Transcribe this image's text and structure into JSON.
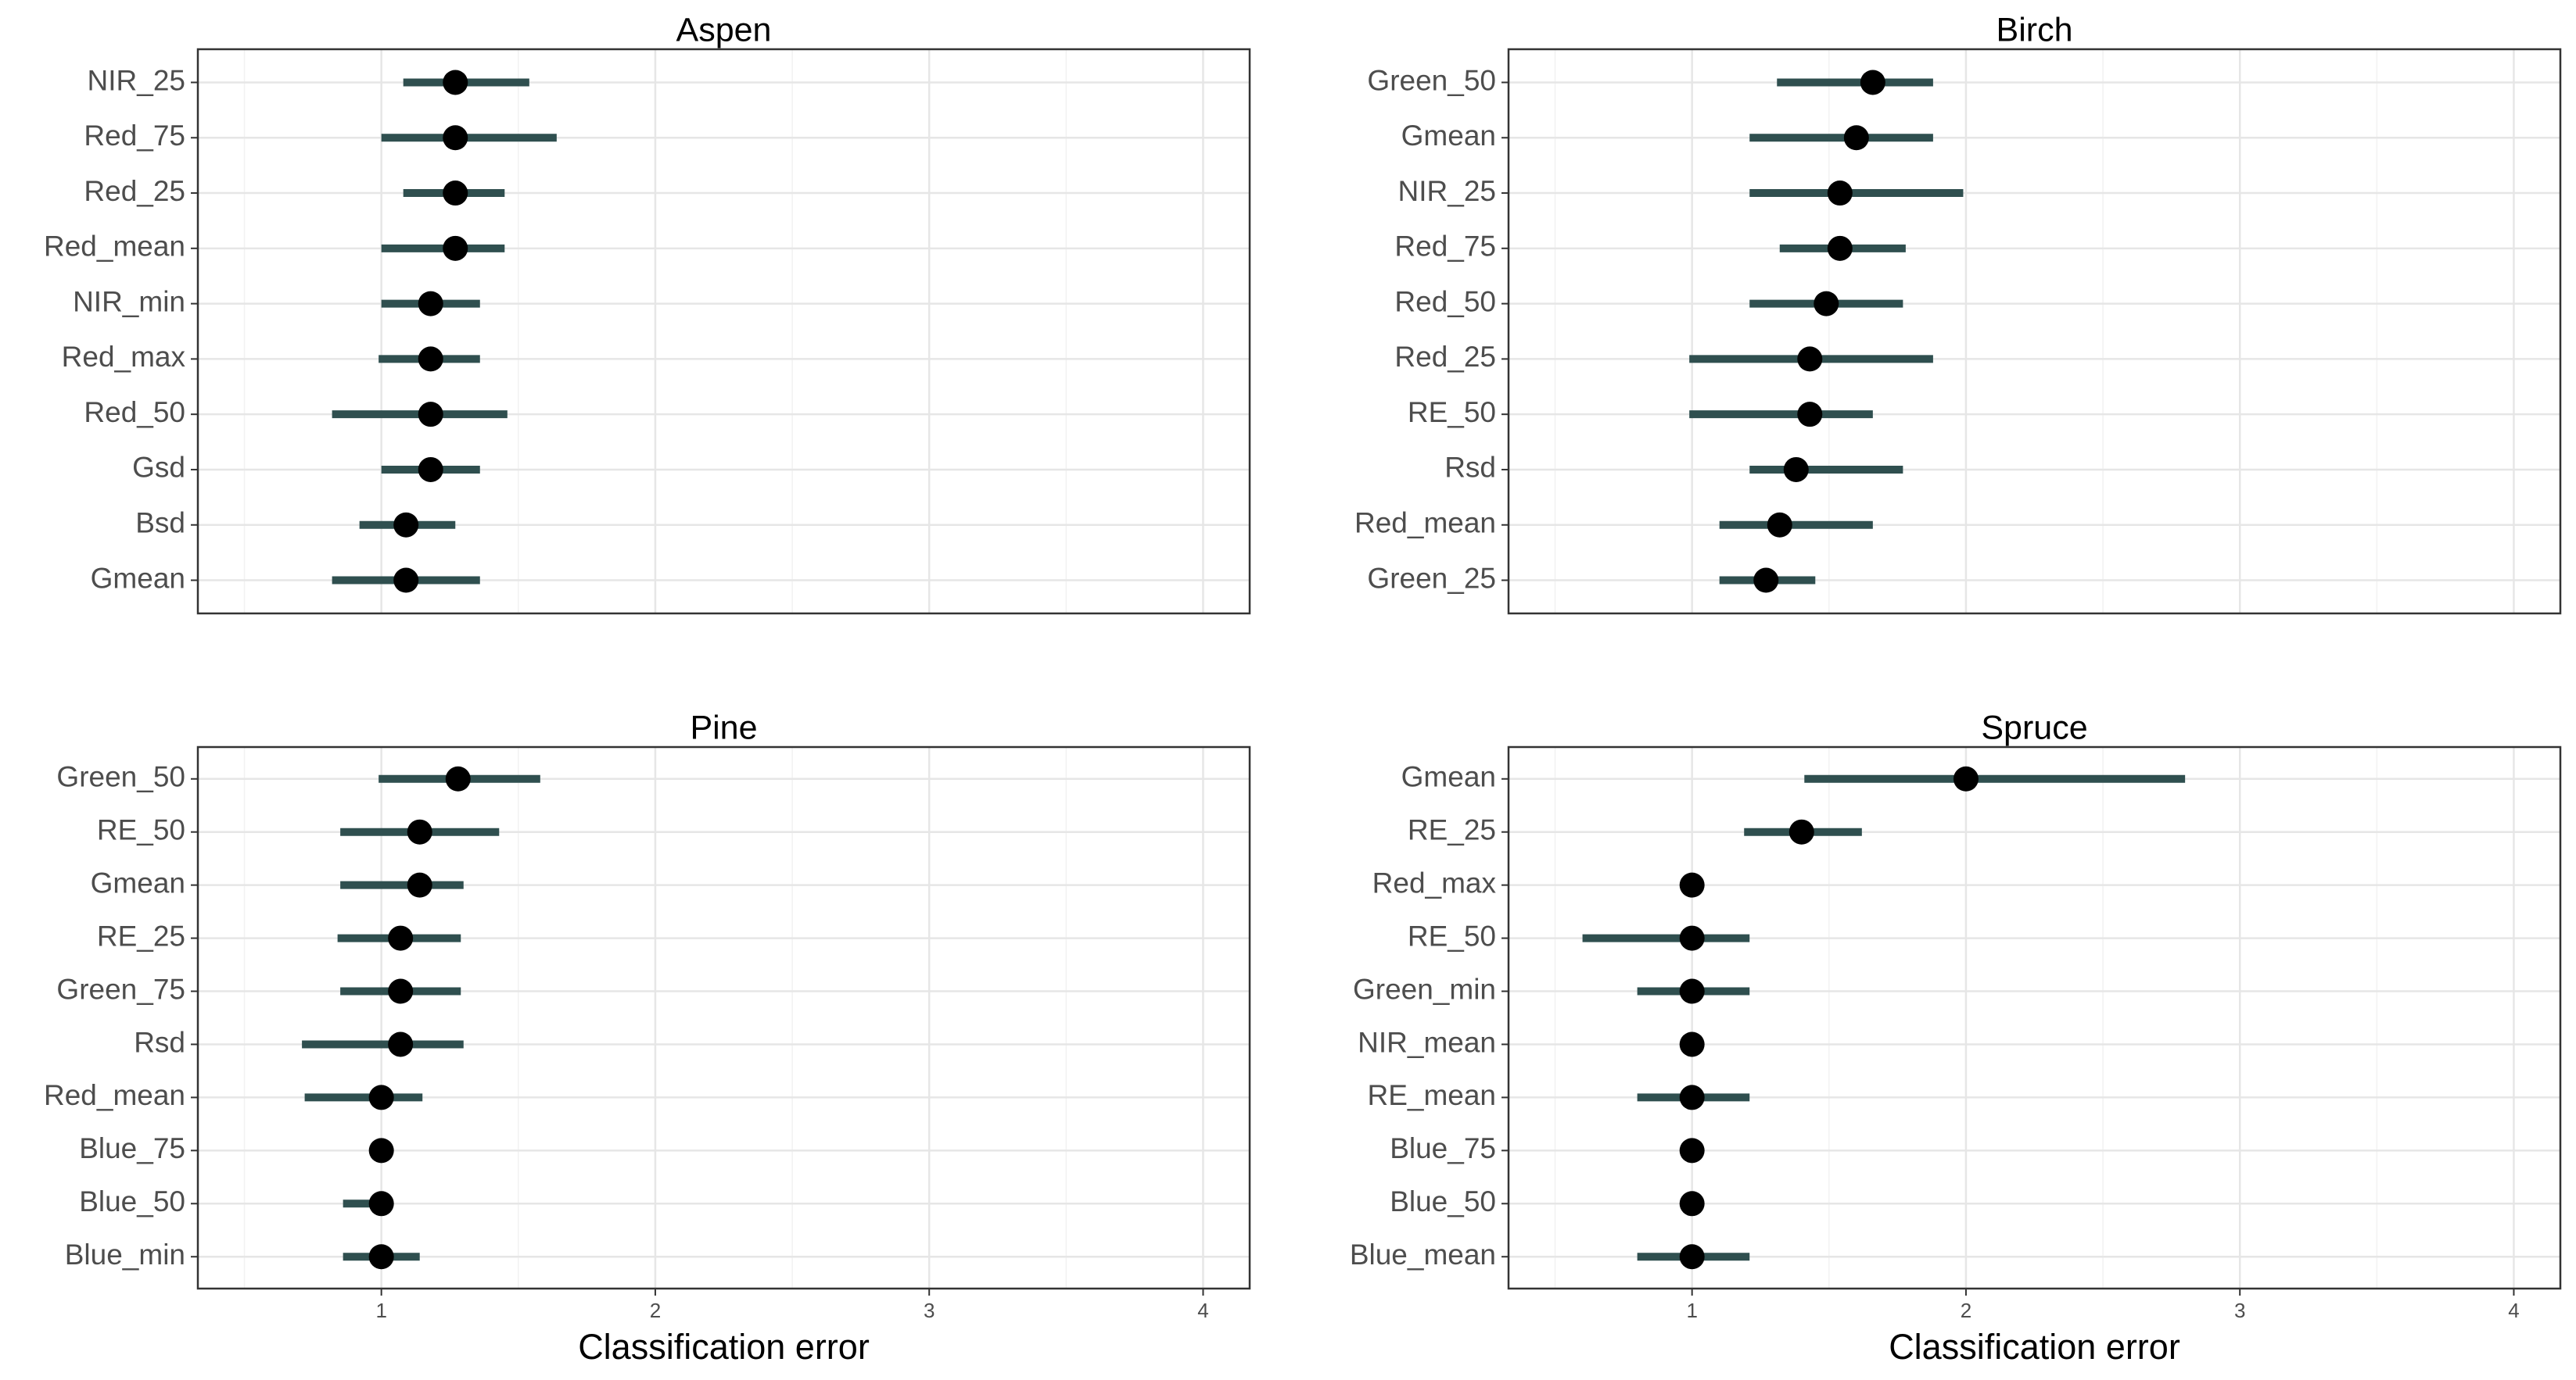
{
  "chart_data": [
    {
      "type": "dot_interval",
      "title": "Aspen",
      "categories": [
        "NIR_25",
        "Red_75",
        "Red_25",
        "Red_mean",
        "NIR_min",
        "Red_max",
        "Red_50",
        "Gsd",
        "Bsd",
        "Gmean"
      ],
      "values": [
        1.27,
        1.27,
        1.27,
        1.27,
        1.18,
        1.18,
        1.18,
        1.18,
        1.09,
        1.09
      ],
      "lower": [
        1.08,
        1.0,
        1.08,
        1.0,
        1.0,
        0.99,
        0.82,
        1.0,
        0.92,
        0.82
      ],
      "upper": [
        1.54,
        1.64,
        1.45,
        1.45,
        1.36,
        1.36,
        1.46,
        1.36,
        1.27,
        1.36
      ],
      "color": "#000000",
      "interval_color": "#2f4f4f",
      "xlim": [
        0.33,
        4.17
      ],
      "xticks": [
        1,
        2,
        3,
        4
      ],
      "grid": true
    },
    {
      "type": "dot_interval",
      "title": "Birch",
      "categories": [
        "Green_50",
        "Gmean",
        "NIR_25",
        "Red_75",
        "Red_50",
        "Red_25",
        "RE_50",
        "Rsd",
        "Red_mean",
        "Green_25"
      ],
      "values": [
        1.66,
        1.6,
        1.54,
        1.54,
        1.49,
        1.43,
        1.43,
        1.38,
        1.32,
        1.27
      ],
      "lower": [
        1.31,
        1.21,
        1.21,
        1.32,
        1.21,
        0.99,
        0.99,
        1.21,
        1.1,
        1.1
      ],
      "upper": [
        1.88,
        1.88,
        1.99,
        1.78,
        1.77,
        1.88,
        1.66,
        1.77,
        1.66,
        1.45
      ],
      "color": "#000000",
      "interval_color": "#2f4f4f",
      "xlim": [
        0.33,
        4.17
      ],
      "xticks": [
        1,
        2,
        3,
        4
      ],
      "grid": true
    },
    {
      "type": "dot_interval",
      "title": "Pine",
      "categories": [
        "Green_50",
        "RE_50",
        "Gmean",
        "RE_25",
        "Green_75",
        "Rsd",
        "Red_mean",
        "Blue_75",
        "Blue_50",
        "Blue_min"
      ],
      "values": [
        1.28,
        1.14,
        1.14,
        1.07,
        1.07,
        1.07,
        1.0,
        1.0,
        1.0,
        1.0
      ],
      "lower": [
        0.99,
        0.85,
        0.85,
        0.84,
        0.85,
        0.71,
        0.72,
        1.0,
        0.86,
        0.86
      ],
      "upper": [
        1.58,
        1.43,
        1.3,
        1.29,
        1.29,
        1.3,
        1.15,
        1.0,
        1.0,
        1.14
      ],
      "color": "#000000",
      "interval_color": "#2f4f4f",
      "xlim": [
        0.33,
        4.17
      ],
      "xticks": [
        1,
        2,
        3,
        4
      ],
      "grid": true,
      "xlabel": "Classification error"
    },
    {
      "type": "dot_interval",
      "title": "Spruce",
      "categories": [
        "Gmean",
        "RE_25",
        "Red_max",
        "RE_50",
        "Green_min",
        "NIR_mean",
        "RE_mean",
        "Blue_75",
        "Blue_50",
        "Blue_mean"
      ],
      "values": [
        2.0,
        1.4,
        1.0,
        1.0,
        1.0,
        1.0,
        1.0,
        1.0,
        1.0,
        1.0
      ],
      "lower": [
        1.41,
        1.19,
        1.0,
        0.6,
        0.8,
        1.0,
        0.8,
        1.0,
        1.0,
        0.8
      ],
      "upper": [
        2.8,
        1.62,
        1.0,
        1.21,
        1.21,
        1.0,
        1.21,
        1.0,
        1.0,
        1.21
      ],
      "color": "#000000",
      "interval_color": "#2f4f4f",
      "xlim": [
        0.33,
        4.17
      ],
      "xticks": [
        1,
        2,
        3,
        4
      ],
      "grid": true,
      "xlabel": "Classification error"
    }
  ]
}
